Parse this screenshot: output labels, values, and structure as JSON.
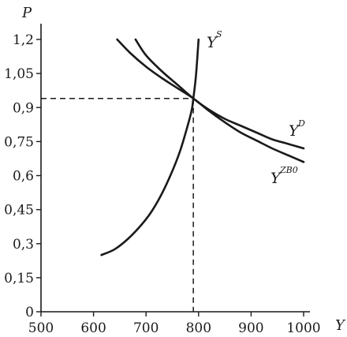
{
  "chart_data": {
    "type": "line",
    "xlabel": "Y",
    "ylabel": "P",
    "xlim": [
      500,
      1000
    ],
    "ylim": [
      0,
      1.25
    ],
    "x_ticks": [
      "500",
      "600",
      "700",
      "800",
      "900",
      "1000"
    ],
    "y_ticks": [
      "0",
      "0,15",
      "0,3",
      "0,45",
      "0,6",
      "0,75",
      "0,9",
      "1,05",
      "1,2"
    ],
    "grid": false,
    "equilibrium": {
      "x": 790,
      "y": 0.94
    },
    "series": [
      {
        "name": "Y",
        "sup": "S",
        "points": [
          [
            615,
            0.25
          ],
          [
            640,
            0.275
          ],
          [
            665,
            0.32
          ],
          [
            690,
            0.38
          ],
          [
            710,
            0.44
          ],
          [
            730,
            0.52
          ],
          [
            750,
            0.62
          ],
          [
            765,
            0.71
          ],
          [
            778,
            0.81
          ],
          [
            787,
            0.89
          ],
          [
            790,
            0.94
          ],
          [
            795,
            1.04
          ],
          [
            800,
            1.2
          ]
        ]
      },
      {
        "name": "Y",
        "sup": "D",
        "points": [
          [
            680,
            1.2
          ],
          [
            700,
            1.13
          ],
          [
            730,
            1.06
          ],
          [
            760,
            1.0
          ],
          [
            790,
            0.94
          ],
          [
            820,
            0.89
          ],
          [
            850,
            0.85
          ],
          [
            880,
            0.82
          ],
          [
            910,
            0.79
          ],
          [
            940,
            0.76
          ],
          [
            970,
            0.74
          ],
          [
            1000,
            0.72
          ]
        ]
      },
      {
        "name": "Y",
        "sup": "ZB0",
        "points": [
          [
            645,
            1.2
          ],
          [
            670,
            1.14
          ],
          [
            700,
            1.08
          ],
          [
            730,
            1.03
          ],
          [
            760,
            0.985
          ],
          [
            790,
            0.94
          ],
          [
            820,
            0.885
          ],
          [
            850,
            0.835
          ],
          [
            880,
            0.79
          ],
          [
            910,
            0.755
          ],
          [
            940,
            0.72
          ],
          [
            970,
            0.69
          ],
          [
            1000,
            0.66
          ]
        ]
      }
    ]
  }
}
